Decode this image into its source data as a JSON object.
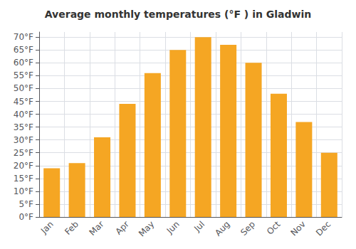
{
  "chart_data": {
    "type": "bar",
    "title": "Average monthly temperatures (°F ) in Gladwin",
    "categories": [
      "Jan",
      "Feb",
      "Mar",
      "Apr",
      "May",
      "Jun",
      "Jul",
      "Aug",
      "Sep",
      "Oct",
      "Nov",
      "Dec"
    ],
    "values": [
      19,
      21,
      31,
      44,
      56,
      65,
      70,
      67,
      60,
      48,
      37,
      25
    ],
    "color": "#F5A623",
    "ylim": [
      0,
      72
    ],
    "yticks": [
      {
        "value": 0,
        "label": "0°F"
      },
      {
        "value": 5,
        "label": "5°F"
      },
      {
        "value": 10,
        "label": "10°F"
      },
      {
        "value": 15,
        "label": "15°F"
      },
      {
        "value": 20,
        "label": "20°F"
      },
      {
        "value": 25,
        "label": "25°F"
      },
      {
        "value": 30,
        "label": "30°F"
      },
      {
        "value": 35,
        "label": "35°F"
      },
      {
        "value": 40,
        "label": "40°F"
      },
      {
        "value": 45,
        "label": "45°F"
      },
      {
        "value": 50,
        "label": "50°F"
      },
      {
        "value": 55,
        "label": "55°F"
      },
      {
        "value": 60,
        "label": "60°F"
      },
      {
        "value": 65,
        "label": "65°F"
      },
      {
        "value": 70,
        "label": "70°F"
      }
    ],
    "grid": true
  }
}
